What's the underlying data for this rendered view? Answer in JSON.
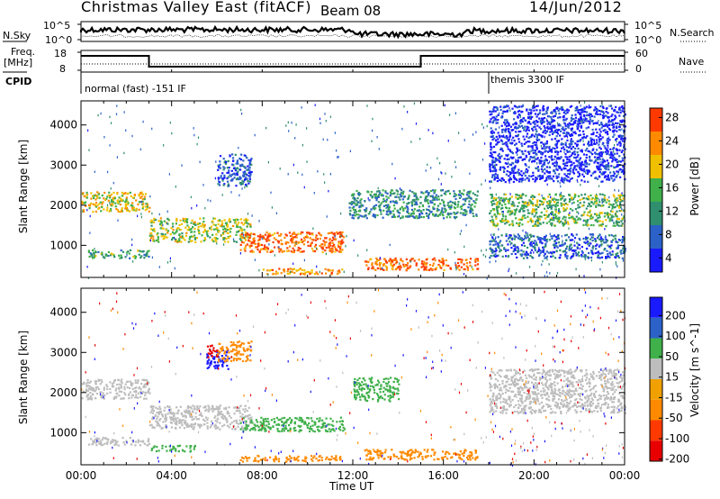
{
  "header": {
    "title": "Christmas Valley East (fitACF)",
    "beam": "Beam 08",
    "date": "14/Jun/2012"
  },
  "strip_labels": {
    "nsky": "N.Sky",
    "nsearch": "N.Search",
    "freq": "Freq.",
    "freq_unit": "[MHz]",
    "nave": "Nave",
    "cpid": "CPID",
    "nsky_ticks": [
      "10^5",
      "10^0"
    ],
    "nsearch_ticks": [
      "10^5",
      "10^0"
    ],
    "freq_ticks": [
      "18",
      "8"
    ],
    "nave_ticks": [
      "60",
      "0"
    ]
  },
  "cpid_segments": [
    {
      "label": "normal (fast) -151 IF",
      "start_hour": 0,
      "end_hour": 18
    },
    {
      "label": "themis 3300 IF",
      "start_hour": 18,
      "end_hour": 24
    }
  ],
  "x_axis": {
    "label": "Time UT",
    "ticks": [
      "00:00",
      "04:00",
      "08:00",
      "12:00",
      "16:00",
      "20:00",
      "00:00"
    ]
  },
  "chart_data": [
    {
      "type": "line",
      "name": "freq-strip",
      "x_unit": "hours UT",
      "xlim": [
        0,
        24
      ],
      "ylim": [
        8,
        18
      ],
      "series": [
        {
          "name": "Freq.",
          "points": [
            [
              0,
              15.5
            ],
            [
              3,
              15.5
            ],
            [
              3,
              10.5
            ],
            [
              15,
              10.5
            ],
            [
              15,
              15.5
            ],
            [
              24,
              15.5
            ]
          ]
        }
      ]
    },
    {
      "type": "heatmap",
      "name": "power",
      "ylabel": "Slant Range [km]",
      "xlim": [
        0,
        24
      ],
      "ylim": [
        200,
        4600
      ],
      "yticks": [
        1000,
        2000,
        3000,
        4000
      ],
      "colorbar_label": "Power [dB]",
      "colorbar_ticks": [
        4,
        8,
        12,
        16,
        20,
        24,
        28
      ],
      "colorbar_colors": [
        "#1a1aff",
        "#2c62c8",
        "#2f8f6e",
        "#3fb04a",
        "#f0c000",
        "#ff8a00",
        "#ff3a00",
        "#e80000"
      ],
      "bands": [
        {
          "t": [
            0,
            3
          ],
          "r": [
            1850,
            2350
          ],
          "level": 20
        },
        {
          "t": [
            3,
            7.5
          ],
          "r": [
            1100,
            1700
          ],
          "level": 18
        },
        {
          "t": [
            0.3,
            3
          ],
          "r": [
            700,
            900
          ],
          "level": 14
        },
        {
          "t": [
            7,
            11.6
          ],
          "r": [
            850,
            1350
          ],
          "level": 26
        },
        {
          "t": [
            8,
            11.5
          ],
          "r": [
            300,
            450
          ],
          "level": 24
        },
        {
          "t": [
            12.5,
            17.5
          ],
          "r": [
            400,
            700
          ],
          "level": 26
        },
        {
          "t": [
            11.8,
            17.5
          ],
          "r": [
            1700,
            2400
          ],
          "level": 12
        },
        {
          "t": [
            18,
            24
          ],
          "r": [
            1500,
            2300
          ],
          "level": 16
        },
        {
          "t": [
            6,
            7.5
          ],
          "r": [
            2500,
            3300
          ],
          "level": 8
        },
        {
          "t": [
            18,
            24
          ],
          "r": [
            700,
            1300
          ],
          "level": 8
        },
        {
          "t": [
            18,
            24
          ],
          "r": [
            2600,
            4500
          ],
          "level": 4
        }
      ]
    },
    {
      "type": "heatmap",
      "name": "velocity",
      "ylabel": "Slant Range [km]",
      "xlim": [
        0,
        24
      ],
      "ylim": [
        200,
        4600
      ],
      "yticks": [
        1000,
        2000,
        3000,
        4000
      ],
      "colorbar_label": "Velocity [m s^-1]",
      "colorbar_ticks": [
        200,
        100,
        50,
        15,
        -15,
        -50,
        -100,
        -200
      ],
      "colorbar_colors": [
        "#1a1aff",
        "#2c62c8",
        "#2f8f6e",
        "#3fb04a",
        "#bdbdbd",
        "#f0a000",
        "#ff8a00",
        "#ff3a00",
        "#e80000"
      ],
      "bands": [
        {
          "t": [
            0,
            3
          ],
          "r": [
            1850,
            2350
          ],
          "level": 0
        },
        {
          "t": [
            3,
            7.5
          ],
          "r": [
            1100,
            1700
          ],
          "level": 0
        },
        {
          "t": [
            0.3,
            3
          ],
          "r": [
            700,
            900
          ],
          "level": 0
        },
        {
          "t": [
            7,
            11.6
          ],
          "r": [
            1050,
            1400
          ],
          "level": 40
        },
        {
          "t": [
            3,
            5
          ],
          "r": [
            550,
            700
          ],
          "level": 40
        },
        {
          "t": [
            7,
            11.5
          ],
          "r": [
            300,
            450
          ],
          "level": -60
        },
        {
          "t": [
            12.5,
            17.5
          ],
          "r": [
            350,
            600
          ],
          "level": -60
        },
        {
          "t": [
            12,
            14
          ],
          "r": [
            1800,
            2400
          ],
          "level": 40
        },
        {
          "t": [
            18,
            24
          ],
          "r": [
            1500,
            2600
          ],
          "level": 0
        },
        {
          "t": [
            5.5,
            6.5
          ],
          "r": [
            2600,
            3100
          ],
          "level": 180
        },
        {
          "t": [
            5.5,
            6
          ],
          "r": [
            2900,
            3200
          ],
          "level": -180
        },
        {
          "t": [
            6,
            7.5
          ],
          "r": [
            2800,
            3300
          ],
          "level": -60
        }
      ]
    }
  ]
}
